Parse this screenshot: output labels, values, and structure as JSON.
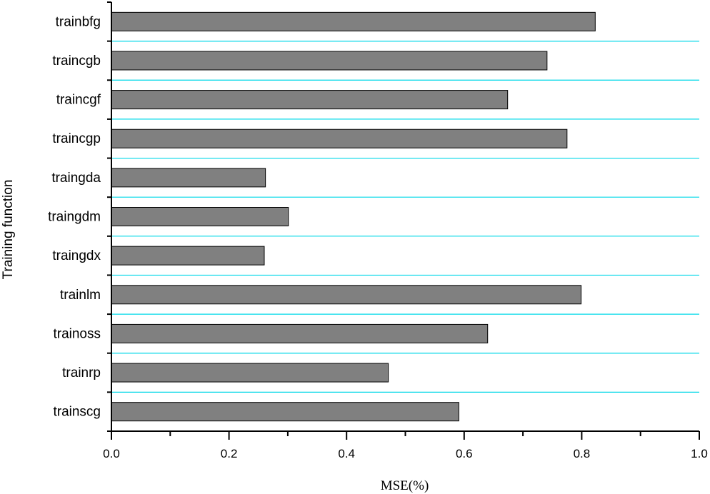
{
  "chart_data": {
    "type": "bar",
    "orientation": "horizontal",
    "categories": [
      "trainbfg",
      "traincgb",
      "traincgf",
      "traincgp",
      "traingda",
      "traingdm",
      "traingdx",
      "trainlm",
      "trainoss",
      "trainrp",
      "trainscg"
    ],
    "values": [
      0.823,
      0.741,
      0.674,
      0.775,
      0.262,
      0.301,
      0.26,
      0.799,
      0.64,
      0.471,
      0.591
    ],
    "xlabel": "MSE(%)",
    "ylabel": "Training function",
    "xlim": [
      0.0,
      1.0
    ],
    "x_ticks": [
      "0.0",
      "0.2",
      "0.4",
      "0.6",
      "0.8",
      "1.0"
    ],
    "grid": "horizontal separators between categories",
    "colors": {
      "bar": "#808080",
      "bar_edge": "#000000",
      "grid": "#00d8e8",
      "axis": "#000000"
    }
  }
}
